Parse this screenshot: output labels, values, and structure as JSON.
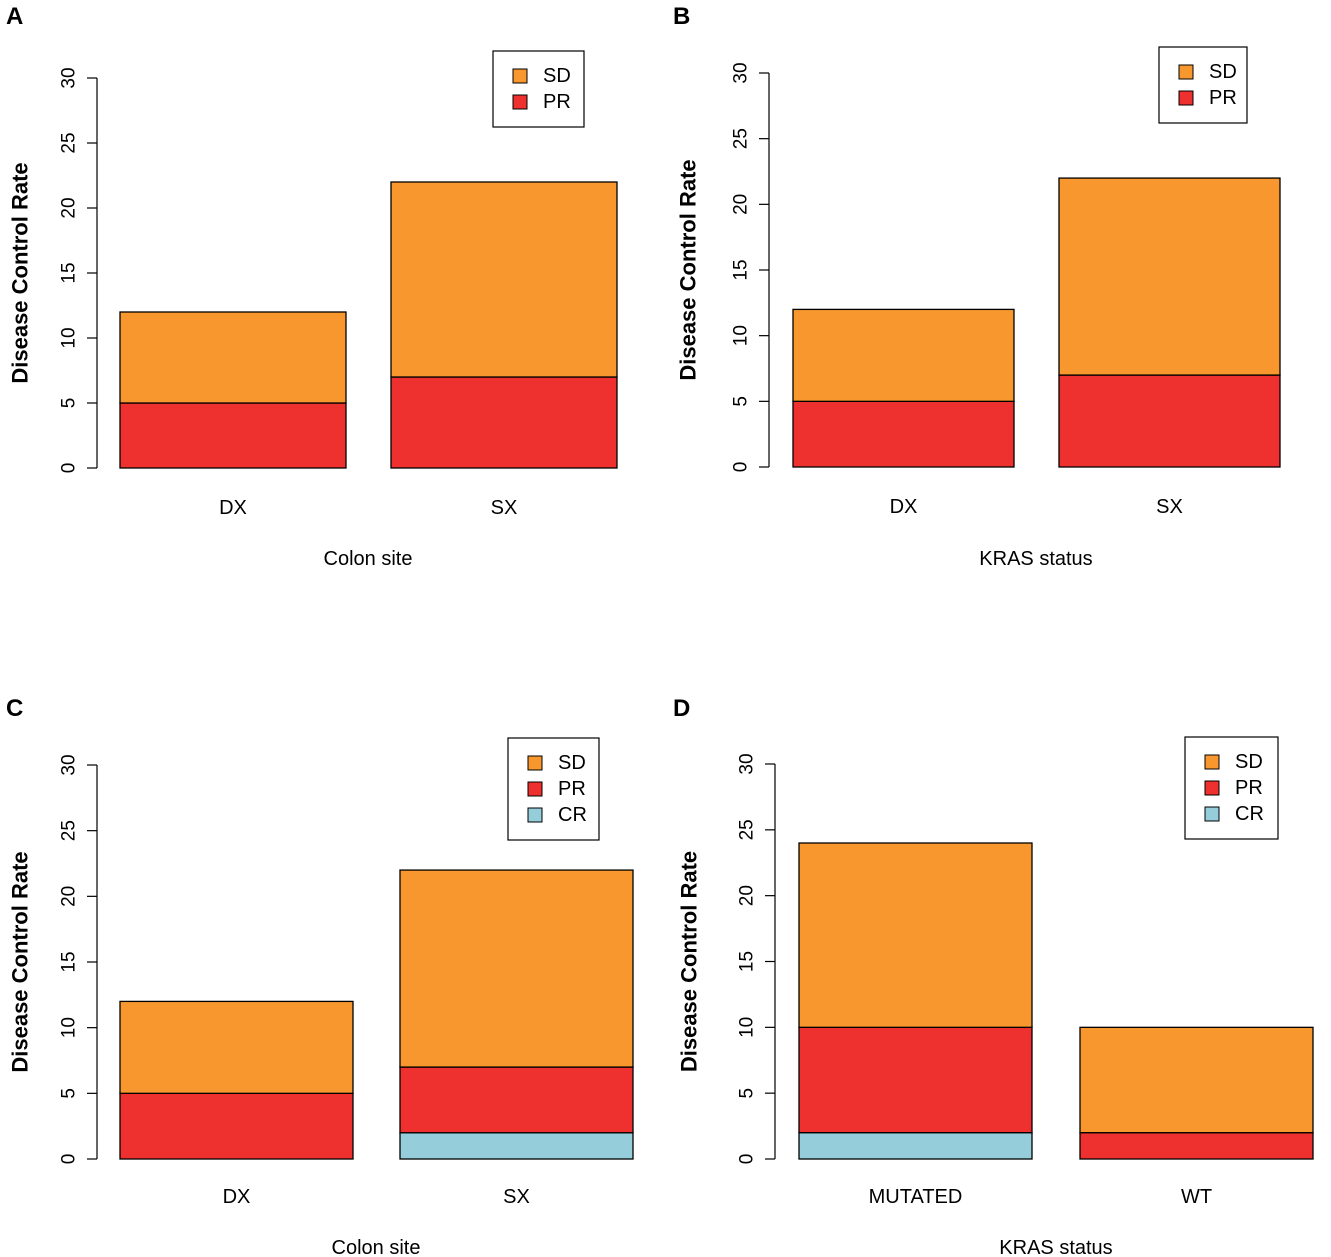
{
  "colors": {
    "SD": "#f7972e",
    "PR": "#ee312f",
    "CR": "#95cddb",
    "stroke": "#000000"
  },
  "chart_data": [
    {
      "panel": "A",
      "type": "bar",
      "stacked": true,
      "title": "",
      "xlabel": "Colon site",
      "ylabel": "Disease Control Rate",
      "ylim": [
        0,
        30
      ],
      "yticks": [
        0,
        5,
        10,
        15,
        20,
        25,
        30
      ],
      "categories": [
        "DX",
        "SX"
      ],
      "series": [
        {
          "name": "PR",
          "values": [
            5,
            7
          ]
        },
        {
          "name": "SD",
          "values": [
            7,
            15
          ]
        }
      ],
      "legend": [
        "SD",
        "PR"
      ],
      "legend_position": "top-right"
    },
    {
      "panel": "B",
      "type": "bar",
      "stacked": true,
      "title": "",
      "xlabel": "KRAS status",
      "ylabel": "Disease Control Rate",
      "ylim": [
        0,
        30
      ],
      "yticks": [
        0,
        5,
        10,
        15,
        20,
        25,
        30
      ],
      "categories": [
        "DX",
        "SX"
      ],
      "series": [
        {
          "name": "PR",
          "values": [
            5,
            7
          ]
        },
        {
          "name": "SD",
          "values": [
            7,
            15
          ]
        }
      ],
      "legend": [
        "SD",
        "PR"
      ],
      "legend_position": "top-right"
    },
    {
      "panel": "C",
      "type": "bar",
      "stacked": true,
      "title": "",
      "xlabel": "Colon site",
      "ylabel": "Disease Control Rate",
      "ylim": [
        0,
        30
      ],
      "yticks": [
        0,
        5,
        10,
        15,
        20,
        25,
        30
      ],
      "categories": [
        "DX",
        "SX"
      ],
      "series": [
        {
          "name": "CR",
          "values": [
            0,
            2
          ]
        },
        {
          "name": "PR",
          "values": [
            5,
            5
          ]
        },
        {
          "name": "SD",
          "values": [
            7,
            15
          ]
        }
      ],
      "legend": [
        "SD",
        "PR",
        "CR"
      ],
      "legend_position": "top-right"
    },
    {
      "panel": "D",
      "type": "bar",
      "stacked": true,
      "title": "",
      "xlabel": "KRAS status",
      "ylabel": "Disease Control Rate",
      "ylim": [
        0,
        30
      ],
      "yticks": [
        0,
        5,
        10,
        15,
        20,
        25,
        30
      ],
      "categories": [
        "MUTATED",
        "WT"
      ],
      "series": [
        {
          "name": "CR",
          "values": [
            2,
            0
          ]
        },
        {
          "name": "PR",
          "values": [
            8,
            2
          ]
        },
        {
          "name": "SD",
          "values": [
            14,
            8
          ]
        }
      ],
      "legend": [
        "SD",
        "PR",
        "CR"
      ],
      "legend_position": "top-right"
    }
  ]
}
